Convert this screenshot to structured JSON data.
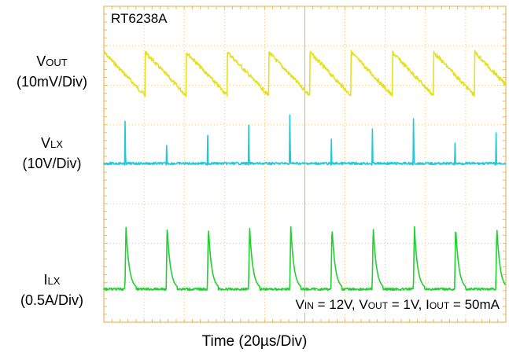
{
  "chart_data": {
    "type": "line",
    "title": "RT6238A",
    "xlabel": "Time (20µs/Div)",
    "x_range_us": [
      0,
      200
    ],
    "grid": true,
    "colors": {
      "vout": "#e6e020",
      "vlx": "#22c8d8",
      "ilx": "#22d030",
      "grid": "#e8b860"
    },
    "series": [
      {
        "name": "VOUT",
        "label_main": "V",
        "label_sub": "OUT",
        "scale": "(10mV/Div)",
        "color": "#e6e020",
        "waveform": "sawtooth",
        "period_us": 20.5,
        "first_event_us": 0,
        "amplitude_div": 1.1
      },
      {
        "name": "VLX",
        "label_main": "V",
        "label_sub": "LX",
        "scale": "(10V/Div)",
        "color": "#22c8d8",
        "waveform": "switching pulse",
        "period_us": 20.5,
        "first_event_us": 10.5,
        "amplitude_div": 1.3
      },
      {
        "name": "ILX",
        "label_main": "I",
        "label_sub": "LX",
        "scale": "(0.5A/Div)",
        "color": "#22d030",
        "waveform": "current spike",
        "period_us": 20.5,
        "first_event_us": 10.5,
        "amplitude_div": 1.6
      }
    ]
  },
  "conditions": {
    "vin_main": "V",
    "vin_sub": "IN",
    "vin_val": " = 12V, ",
    "vout_main": "V",
    "vout_sub": "OUT",
    "vout_val": " = 1V, ",
    "iout_main": "I",
    "iout_sub": "OUT",
    "iout_val": " = 50mA"
  }
}
